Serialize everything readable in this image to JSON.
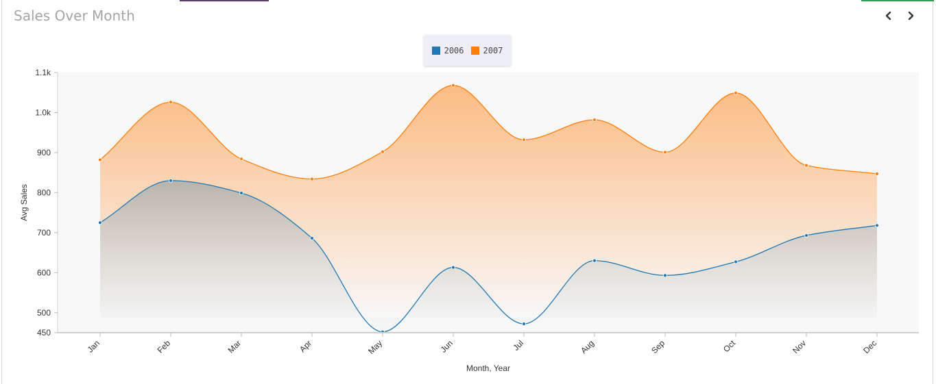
{
  "header": {
    "title": "Sales Over Month",
    "prev_icon": "chevron-left-icon",
    "next_icon": "chevron-right-icon"
  },
  "legend": {
    "items": [
      {
        "label": "2006",
        "color": "#1f77b4"
      },
      {
        "label": "2007",
        "color": "#ff7f0e"
      }
    ]
  },
  "chart_data": {
    "type": "area",
    "title": "Sales Over Month",
    "xlabel": "Month, Year",
    "ylabel": "Avg Sales",
    "categories": [
      "Jan",
      "Feb",
      "Mar",
      "Apr",
      "May",
      "Jun",
      "Jul",
      "Aug",
      "Sep",
      "Oct",
      "Nov",
      "Dec"
    ],
    "ylim": [
      450,
      1100
    ],
    "yticks": [
      450,
      500,
      600,
      700,
      800,
      900,
      1000,
      1100
    ],
    "ytick_labels": [
      "450",
      "500",
      "600",
      "700",
      "800",
      "900",
      "1.0k",
      "1.1k"
    ],
    "series": [
      {
        "name": "2006",
        "color": "#1f77b4",
        "values": [
          725,
          830,
          799,
          686,
          452,
          613,
          472,
          630,
          593,
          627,
          693,
          718
        ]
      },
      {
        "name": "2007",
        "color": "#ff7f0e",
        "values": [
          882,
          1026,
          884,
          834,
          902,
          1068,
          932,
          982,
          901,
          1049,
          868,
          847
        ]
      }
    ],
    "grid": false,
    "legend_position": "top-center"
  }
}
